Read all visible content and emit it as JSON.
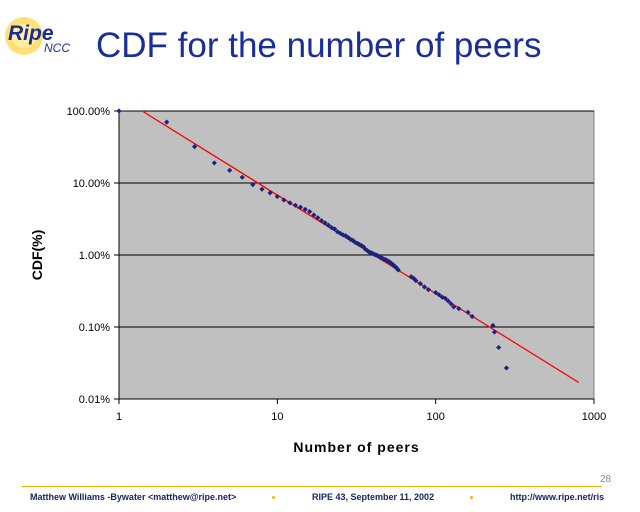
{
  "logo": {
    "text": "Ripe",
    "subtext": "NCC"
  },
  "title": "CDF for the number of peers",
  "slide_number": "28",
  "footer": {
    "author": "Matthew Williams -Bywater <matthew@ripe.net>",
    "event": "RIPE 43, September 11, 2002",
    "url": "http://www.ripe.net/ris"
  },
  "colors": {
    "plot_background": "#c0c0c0",
    "points": "#1a237e",
    "fit_line": "#ff0000",
    "title": "#1a2e9a",
    "footer_rule": "#f2b400"
  },
  "chart_data": {
    "type": "scatter",
    "x_scale": "log",
    "y_scale": "log",
    "xlabel": "Number of peers",
    "ylabel": "CDF(%)",
    "xlim": [
      1,
      1000
    ],
    "ylim": [
      0.01,
      100
    ],
    "x_ticks": [
      "1",
      "10",
      "100",
      "1000"
    ],
    "y_ticks": [
      "0.01%",
      "0.10%",
      "1.00%",
      "10.00%",
      "100.00%"
    ],
    "grid": "horizontal",
    "legend": "none",
    "series": [
      {
        "kind": "points",
        "x": [
          1,
          2,
          3,
          4,
          5,
          6,
          7,
          8,
          9,
          10,
          11,
          12,
          13,
          14,
          15,
          16,
          17,
          18,
          19,
          20,
          21,
          22,
          23,
          24,
          25,
          26,
          27,
          28,
          29,
          30,
          31,
          32,
          33,
          34,
          35,
          36,
          37,
          38,
          39,
          40,
          41,
          42,
          43,
          44,
          45,
          46,
          47,
          48,
          49,
          50,
          51,
          52,
          53,
          54,
          55,
          56,
          57,
          58,
          70,
          73,
          75,
          80,
          85,
          90,
          100,
          105,
          110,
          115,
          120,
          125,
          130,
          140,
          160,
          170,
          230,
          235,
          250,
          280
        ],
        "y": [
          100,
          70,
          32,
          19,
          15,
          12,
          9.5,
          8.2,
          7.3,
          6.5,
          5.8,
          5.3,
          4.9,
          4.6,
          4.3,
          4.0,
          3.6,
          3.3,
          3.0,
          2.8,
          2.6,
          2.4,
          2.3,
          2.1,
          2.0,
          1.9,
          1.85,
          1.75,
          1.65,
          1.6,
          1.5,
          1.45,
          1.4,
          1.35,
          1.3,
          1.2,
          1.15,
          1.1,
          1.08,
          1.05,
          1.02,
          1.0,
          0.98,
          0.95,
          0.92,
          0.9,
          0.88,
          0.86,
          0.85,
          0.82,
          0.8,
          0.78,
          0.75,
          0.73,
          0.7,
          0.68,
          0.65,
          0.62,
          0.5,
          0.47,
          0.44,
          0.4,
          0.36,
          0.33,
          0.3,
          0.28,
          0.26,
          0.25,
          0.23,
          0.21,
          0.19,
          0.18,
          0.16,
          0.14,
          0.105,
          0.085,
          0.052,
          0.027
        ]
      },
      {
        "kind": "fit_line",
        "x": [
          1.4,
          800
        ],
        "y": [
          100,
          0.017
        ]
      }
    ]
  }
}
